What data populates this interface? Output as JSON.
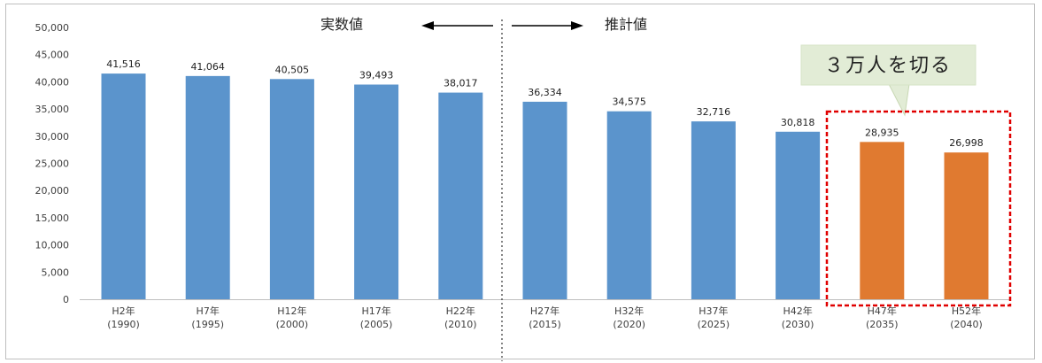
{
  "chart_data": {
    "type": "bar",
    "categories": [
      [
        "H2年",
        "(1990)"
      ],
      [
        "H7年",
        "(1995)"
      ],
      [
        "H12年",
        "(2000)"
      ],
      [
        "H17年",
        "(2005)"
      ],
      [
        "H22年",
        "(2010)"
      ],
      [
        "H27年",
        "(2015)"
      ],
      [
        "H32年",
        "(2020)"
      ],
      [
        "H37年",
        "(2025)"
      ],
      [
        "H42年",
        "(2030)"
      ],
      [
        "H47年",
        "(2035)"
      ],
      [
        "H52年",
        "(2040)"
      ]
    ],
    "values": [
      41516,
      41064,
      40505,
      39493,
      38017,
      36334,
      34575,
      32716,
      30818,
      28935,
      26998
    ],
    "value_labels": [
      "41,516",
      "41,064",
      "40,505",
      "39,493",
      "38,017",
      "36,334",
      "34,575",
      "32,716",
      "30,818",
      "28,935",
      "26,998"
    ],
    "bar_colors": [
      "#5b94cc",
      "#5b94cc",
      "#5b94cc",
      "#5b94cc",
      "#5b94cc",
      "#5b94cc",
      "#5b94cc",
      "#5b94cc",
      "#5b94cc",
      "#e07a30",
      "#e07a30"
    ],
    "ylim": [
      0,
      50000
    ],
    "yticks": [
      "0",
      "5,000",
      "10,000",
      "15,000",
      "20,000",
      "25,000",
      "30,000",
      "35,000",
      "40,000",
      "45,000",
      "50,000"
    ],
    "grid": false,
    "title": "",
    "xlabel": "",
    "ylabel": ""
  },
  "annotations": {
    "actual_label": "実数値",
    "estimate_label": "推計値",
    "callout": "３万人を切る"
  },
  "colors": {
    "actual": "#5b94cc",
    "highlight": "#e07a30",
    "callout_bg": "#e2ecd6",
    "dashed_box": "#e00000"
  }
}
